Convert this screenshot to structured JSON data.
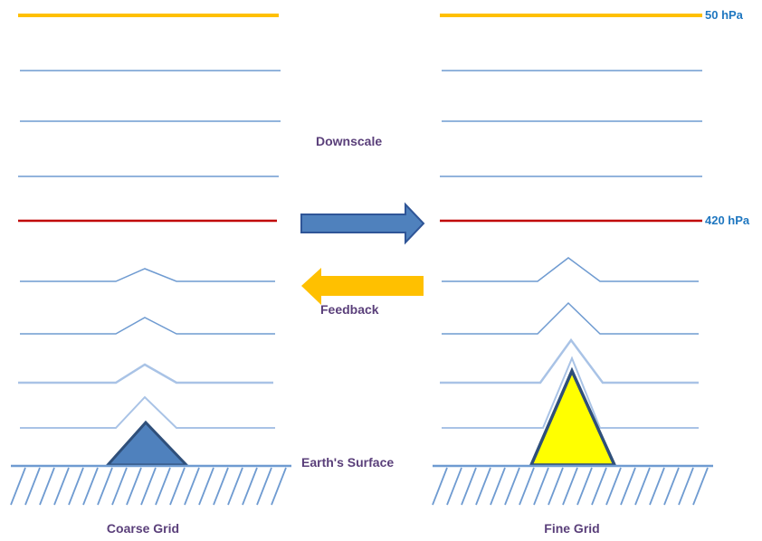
{
  "labels": {
    "top_pressure": "50 hPa",
    "mid_pressure": "420 hPa",
    "downscale": "Downscale",
    "feedback": "Feedback",
    "surface": "Earth's Surface",
    "left_grid": "Coarse Grid",
    "right_grid": "Fine Grid"
  },
  "colors": {
    "top_level": "#ffc000",
    "mid_level": "#c00000",
    "level_line": "#6f9bd1",
    "pressure_text": "#1f77c0",
    "label_text": "#5a3f7a",
    "downscale_arrow": "#4f81bd",
    "downscale_arrow_border": "#2f5597",
    "feedback_arrow": "#ffc000",
    "coarse_mountain": "#4f81bd",
    "fine_mountain": "#ffff00",
    "mountain_border": "#2f4f7a",
    "surface_line": "#6f9bd1"
  },
  "icons": {
    "downscale_arrow": "arrow-right-icon",
    "feedback_arrow": "arrow-left-icon",
    "coarse_terrain": "triangle-mountain-icon",
    "fine_terrain": "triangle-mountain-icon"
  }
}
